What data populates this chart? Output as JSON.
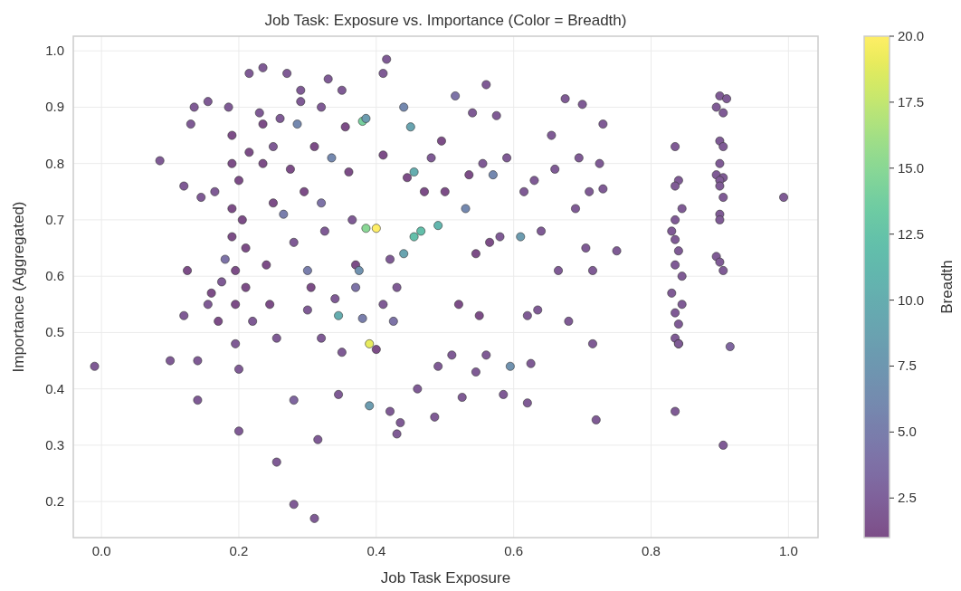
{
  "chart_data": {
    "type": "scatter",
    "title": "Job Task: Exposure vs. Importance (Color = Breadth)",
    "xlabel": "Job Task Exposure",
    "ylabel": "Importance (Aggregated)",
    "clabel": "Breadth",
    "xlim": [
      -0.041,
      1.043
    ],
    "ylim": [
      0.136,
      1.026
    ],
    "clim": [
      1,
      20
    ],
    "xticks": [
      {
        "value": 0,
        "label": "0.0"
      },
      0.2,
      0.4,
      0.6,
      0.8,
      {
        "value": 1,
        "label": "1.0"
      }
    ],
    "yticks": [
      0.2,
      0.3,
      0.4,
      0.5,
      0.6,
      0.7,
      0.8,
      0.9,
      {
        "value": 1,
        "label": "1.0"
      }
    ],
    "cticks": [
      2.5,
      {
        "value": 5,
        "label": "5.0"
      },
      7.5,
      {
        "value": 10,
        "label": "10.0"
      },
      12.5,
      {
        "value": 15,
        "label": "15.0"
      },
      17.5,
      {
        "value": 20,
        "label": "20.0"
      }
    ],
    "grid": true,
    "marker": "circle",
    "x": [
      -0.01,
      0.085,
      0.1,
      0.12,
      0.12,
      0.125,
      0.13,
      0.135,
      0.14,
      0.14,
      0.145,
      0.155,
      0.155,
      0.16,
      0.165,
      0.17,
      0.175,
      0.18,
      0.185,
      0.19,
      0.19,
      0.19,
      0.19,
      0.195,
      0.195,
      0.195,
      0.2,
      0.2,
      0.2,
      0.205,
      0.21,
      0.21,
      0.215,
      0.215,
      0.22,
      0.23,
      0.235,
      0.235,
      0.235,
      0.24,
      0.245,
      0.25,
      0.25,
      0.255,
      0.255,
      0.26,
      0.265,
      0.27,
      0.275,
      0.28,
      0.28,
      0.28,
      0.285,
      0.29,
      0.29,
      0.295,
      0.3,
      0.3,
      0.305,
      0.31,
      0.31,
      0.315,
      0.32,
      0.32,
      0.32,
      0.325,
      0.33,
      0.335,
      0.34,
      0.345,
      0.345,
      0.35,
      0.35,
      0.355,
      0.36,
      0.365,
      0.37,
      0.37,
      0.375,
      0.38,
      0.38,
      0.385,
      0.385,
      0.39,
      0.39,
      0.4,
      0.4,
      0.41,
      0.415,
      0.41,
      0.41,
      0.42,
      0.42,
      0.425,
      0.43,
      0.43,
      0.435,
      0.44,
      0.44,
      0.445,
      0.45,
      0.455,
      0.455,
      0.46,
      0.465,
      0.47,
      0.48,
      0.485,
      0.49,
      0.49,
      0.495,
      0.5,
      0.51,
      0.515,
      0.52,
      0.525,
      0.53,
      0.535,
      0.54,
      0.545,
      0.545,
      0.55,
      0.555,
      0.56,
      0.56,
      0.565,
      0.57,
      0.575,
      0.58,
      0.585,
      0.59,
      0.595,
      0.61,
      0.615,
      0.62,
      0.62,
      0.625,
      0.63,
      0.635,
      0.64,
      0.655,
      0.66,
      0.665,
      0.675,
      0.68,
      0.69,
      0.695,
      0.7,
      0.705,
      0.71,
      0.715,
      0.715,
      0.72,
      0.725,
      0.73,
      0.73,
      0.75,
      0.835,
      0.84,
      0.835,
      0.845,
      0.835,
      0.83,
      0.835,
      0.84,
      0.835,
      0.845,
      0.83,
      0.845,
      0.835,
      0.84,
      0.835,
      0.84,
      0.84,
      0.835,
      0.9,
      0.91,
      0.895,
      0.905,
      0.9,
      0.905,
      0.9,
      0.895,
      0.905,
      0.9,
      0.9,
      0.905,
      0.9,
      0.9,
      0.895,
      0.9,
      0.905,
      0.905,
      0.915,
      0.993
    ],
    "values": [
      0.44,
      0.805,
      0.45,
      0.53,
      0.76,
      0.61,
      0.87,
      0.9,
      0.38,
      0.45,
      0.74,
      0.91,
      0.55,
      0.57,
      0.75,
      0.52,
      0.59,
      0.63,
      0.9,
      0.85,
      0.8,
      0.72,
      0.67,
      0.61,
      0.55,
      0.48,
      0.435,
      0.325,
      0.77,
      0.7,
      0.65,
      0.58,
      0.96,
      0.82,
      0.52,
      0.89,
      0.97,
      0.87,
      0.8,
      0.62,
      0.55,
      0.83,
      0.73,
      0.49,
      0.27,
      0.88,
      0.71,
      0.96,
      0.79,
      0.66,
      0.38,
      0.195,
      0.87,
      0.91,
      0.93,
      0.75,
      0.61,
      0.54,
      0.58,
      0.83,
      0.17,
      0.31,
      0.9,
      0.73,
      0.49,
      0.68,
      0.95,
      0.81,
      0.56,
      0.53,
      0.39,
      0.93,
      0.465,
      0.865,
      0.785,
      0.7,
      0.62,
      0.58,
      0.61,
      0.875,
      0.525,
      0.88,
      0.685,
      0.48,
      0.37,
      0.685,
      0.47,
      0.96,
      0.985,
      0.815,
      0.55,
      0.63,
      0.36,
      0.52,
      0.58,
      0.32,
      0.34,
      0.9,
      0.64,
      0.775,
      0.865,
      0.785,
      0.67,
      0.4,
      0.68,
      0.75,
      0.81,
      0.35,
      0.69,
      0.44,
      0.84,
      0.75,
      0.46,
      0.92,
      0.55,
      0.385,
      0.72,
      0.78,
      0.89,
      0.64,
      0.43,
      0.53,
      0.8,
      0.94,
      0.46,
      0.66,
      0.78,
      0.885,
      0.67,
      0.39,
      0.81,
      0.44,
      0.67,
      0.75,
      0.53,
      0.375,
      0.445,
      0.77,
      0.54,
      0.68,
      0.85,
      0.79,
      0.61,
      0.915,
      0.52,
      0.72,
      0.81,
      0.905,
      0.65,
      0.75,
      0.61,
      0.48,
      0.345,
      0.8,
      0.87,
      0.755,
      0.645,
      0.83,
      0.77,
      0.76,
      0.72,
      0.7,
      0.68,
      0.665,
      0.645,
      0.62,
      0.6,
      0.57,
      0.55,
      0.535,
      0.515,
      0.49,
      0.48,
      0.48,
      0.36,
      0.92,
      0.915,
      0.9,
      0.89,
      0.84,
      0.83,
      0.8,
      0.78,
      0.775,
      0.77,
      0.76,
      0.74,
      0.71,
      0.7,
      0.635,
      0.625,
      0.61,
      0.3,
      0.475,
      0.74
    ],
    "cvalues": [
      2,
      2,
      2,
      2,
      2,
      1,
      2,
      2,
      2,
      2,
      2,
      2,
      2,
      1,
      2,
      1,
      2,
      4,
      2,
      1,
      1,
      1,
      1,
      1,
      1,
      2,
      2,
      2,
      1,
      1,
      1,
      1,
      2,
      1,
      2,
      2,
      2,
      1,
      1,
      1,
      1,
      2,
      1,
      2,
      2,
      2,
      5,
      2,
      1,
      2,
      3,
      2,
      6,
      2,
      2,
      1,
      5,
      2,
      1,
      1,
      2,
      2,
      2,
      4,
      2,
      2,
      2,
      6,
      2,
      10,
      2,
      2,
      2,
      1,
      1,
      2,
      1,
      4,
      7,
      14,
      5,
      8,
      15,
      19,
      8,
      20,
      1,
      2,
      2,
      1,
      2,
      2,
      2,
      4,
      2,
      2,
      2,
      6,
      9,
      1,
      9,
      10,
      12,
      2,
      12,
      1,
      2,
      2,
      11,
      2,
      1,
      1,
      2,
      4,
      1,
      2,
      6,
      1,
      2,
      1,
      2,
      1,
      2,
      2,
      2,
      1,
      6,
      2,
      2,
      2,
      2,
      7,
      8,
      2,
      2,
      2,
      2,
      2,
      2,
      2,
      2,
      2,
      2,
      2,
      2,
      2,
      2,
      2,
      2,
      2,
      2,
      2,
      2,
      2,
      2,
      2,
      2,
      2,
      2,
      2,
      2,
      2,
      2,
      2,
      2,
      2,
      2,
      2,
      2,
      2,
      2,
      2,
      2,
      2,
      2,
      2,
      2,
      2,
      2,
      2,
      2,
      2,
      2,
      2,
      2,
      2,
      2,
      2,
      2,
      2,
      2,
      2,
      2,
      3,
      2
    ]
  }
}
